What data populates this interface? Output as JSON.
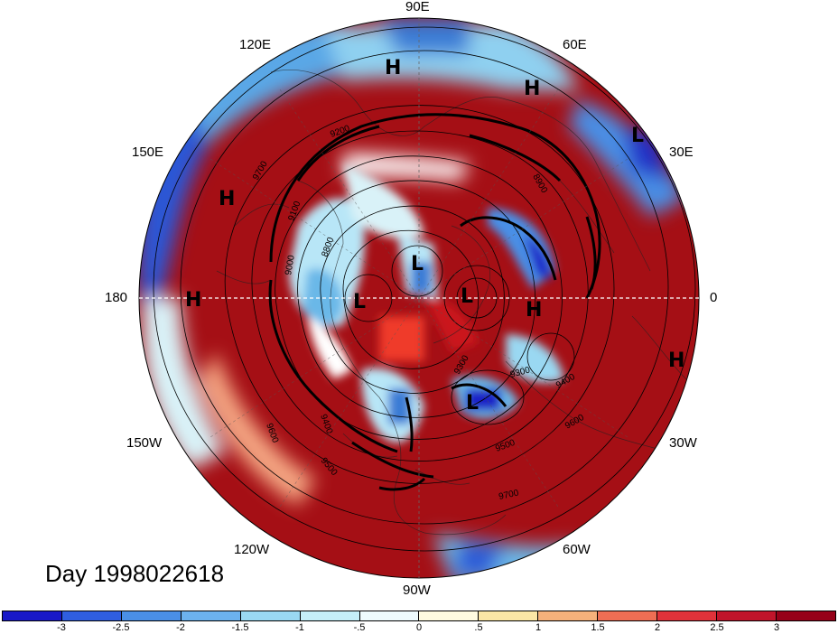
{
  "map": {
    "projection": "north-polar-stereographic",
    "field": "anomaly shading with geopotential height contours",
    "longitude_labels": [
      {
        "id": "lon-90e",
        "text": "90E"
      },
      {
        "id": "lon-60e",
        "text": "60E"
      },
      {
        "id": "lon-30e",
        "text": "30E"
      },
      {
        "id": "lon-0",
        "text": "0"
      },
      {
        "id": "lon-30w",
        "text": "30W"
      },
      {
        "id": "lon-60w",
        "text": "60W"
      },
      {
        "id": "lon-90w",
        "text": "90W"
      },
      {
        "id": "lon-120w",
        "text": "120W"
      },
      {
        "id": "lon-150w",
        "text": "150W"
      },
      {
        "id": "lon-180",
        "text": "180"
      },
      {
        "id": "lon-150e",
        "text": "150E"
      },
      {
        "id": "lon-120e",
        "text": "120E"
      }
    ],
    "pressure_centers": [
      "H",
      "H",
      "L",
      "H",
      "H",
      "L",
      "L",
      "L",
      "H",
      "H",
      "L"
    ],
    "contour_labels": [
      "9700",
      "9600",
      "9500",
      "9400",
      "9300",
      "9200",
      "9100",
      "9000",
      "8900",
      "8800"
    ],
    "colors": {
      "deep_red": "#a50f15",
      "red": "#cb181d",
      "light_red": "#ef3b2c",
      "orange": "#f4a582",
      "cream": "#fff5d0",
      "light_blue": "#b8e6f7",
      "mid_blue": "#6bb8e8",
      "blue": "#3a7bd5",
      "deep_blue": "#1f24c8"
    }
  },
  "title": {
    "day_label": "Day 1998022618"
  },
  "colorbar": {
    "ticks": [
      "-3",
      "-2.5",
      "-2",
      "-1.5",
      "-1",
      "-.5",
      "0",
      ".5",
      "1",
      "1.5",
      "2",
      "2.5",
      "3"
    ],
    "colors": [
      "#1818c8",
      "#2f5ee0",
      "#4a8fe6",
      "#6cb2ee",
      "#9ad8f2",
      "#c5eef8",
      "#eefbfd",
      "#fffbe0",
      "#fbe6a6",
      "#f5b17b",
      "#ee6e54",
      "#e0323a",
      "#c0142a",
      "#960018"
    ]
  }
}
